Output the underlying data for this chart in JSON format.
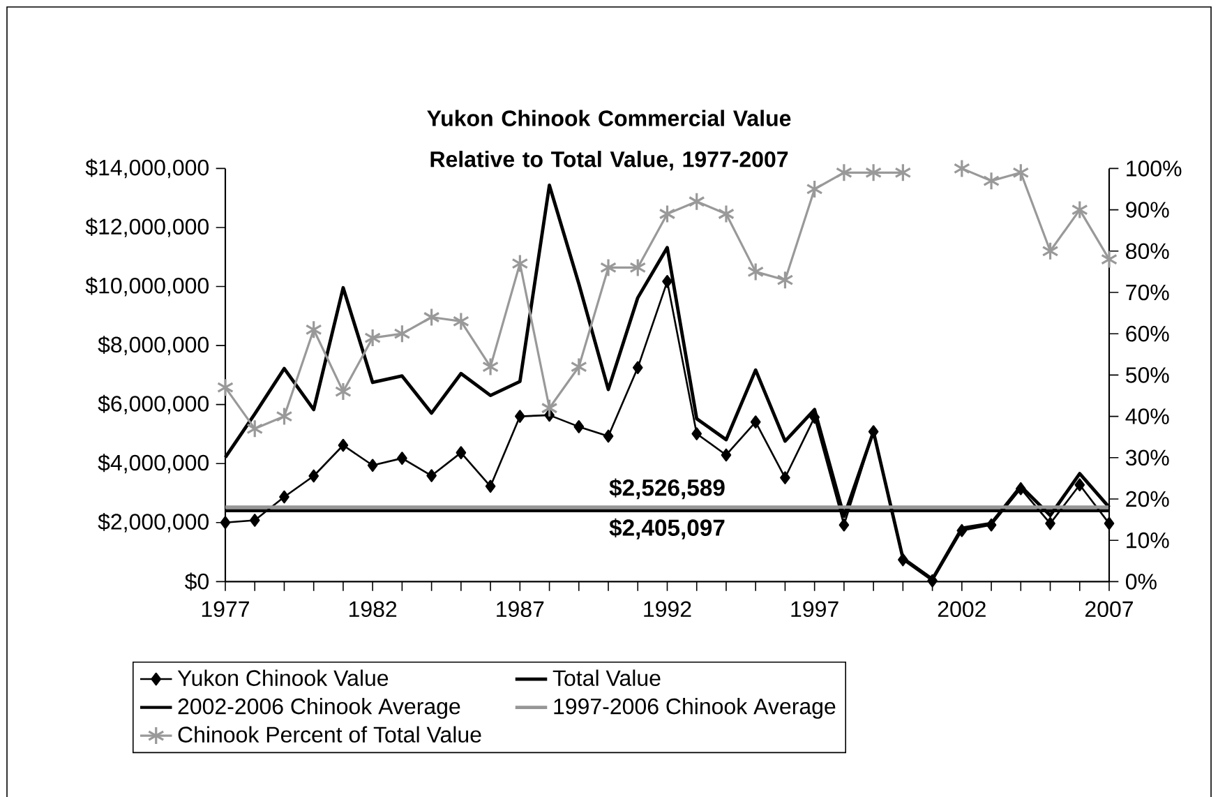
{
  "chart_data": {
    "type": "line",
    "title": "Yukon Chinook Commercial Value Relative to Total Value, 1977-2007",
    "x": [
      1977,
      1978,
      1979,
      1980,
      1981,
      1982,
      1983,
      1984,
      1985,
      1986,
      1987,
      1988,
      1989,
      1990,
      1991,
      1992,
      1993,
      1994,
      1995,
      1996,
      1997,
      1998,
      1999,
      2000,
      2001,
      2002,
      2003,
      2004,
      2005,
      2006,
      2007
    ],
    "xlim": [
      1977,
      2007
    ],
    "xticks": [
      1977,
      {
        "value": 1978,
        "label": null
      },
      {
        "value": 1979,
        "label": null
      },
      {
        "value": 1980,
        "label": null
      },
      {
        "value": 1981,
        "label": null
      },
      1982,
      {
        "value": 1983,
        "label": null
      },
      {
        "value": 1984,
        "label": null
      },
      {
        "value": 1985,
        "label": null
      },
      {
        "value": 1986,
        "label": null
      },
      1987,
      {
        "value": 1988,
        "label": null
      },
      {
        "value": 1989,
        "label": null
      },
      {
        "value": 1990,
        "label": null
      },
      {
        "value": 1991,
        "label": null
      },
      1992,
      {
        "value": 1993,
        "label": null
      },
      {
        "value": 1994,
        "label": null
      },
      {
        "value": 1995,
        "label": null
      },
      {
        "value": 1996,
        "label": null
      },
      1997,
      {
        "value": 1998,
        "label": null
      },
      {
        "value": 1999,
        "label": null
      },
      {
        "value": 2000,
        "label": null
      },
      {
        "value": 2001,
        "label": null
      },
      2002,
      {
        "value": 2003,
        "label": null
      },
      {
        "value": 2004,
        "label": null
      },
      {
        "value": 2005,
        "label": null
      },
      {
        "value": 2006,
        "label": null
      },
      2007
    ],
    "ylim": [
      0,
      14000000
    ],
    "yticks": [
      {
        "value": 0,
        "label": "$0"
      },
      {
        "value": 2000000,
        "label": "$2,000,000"
      },
      {
        "value": 4000000,
        "label": "$4,000,000"
      },
      {
        "value": 6000000,
        "label": "$6,000,000"
      },
      {
        "value": 8000000,
        "label": "$8,000,000"
      },
      {
        "value": 10000000,
        "label": "$10,000,000"
      },
      {
        "value": 12000000,
        "label": "$12,000,000"
      },
      {
        "value": 14000000,
        "label": "$14,000,000"
      }
    ],
    "y2lim": [
      0,
      100
    ],
    "y2ticks": [
      {
        "value": 0,
        "label": "0%"
      },
      {
        "value": 10,
        "label": "10%"
      },
      {
        "value": 20,
        "label": "20%"
      },
      {
        "value": 30,
        "label": "30%"
      },
      {
        "value": 40,
        "label": "40%"
      },
      {
        "value": 50,
        "label": "50%"
      },
      {
        "value": 60,
        "label": "60%"
      },
      {
        "value": 70,
        "label": "70%"
      },
      {
        "value": 80,
        "label": "80%"
      },
      {
        "value": 90,
        "label": "90%"
      },
      {
        "value": 100,
        "label": "100%"
      }
    ],
    "legend": "bottom",
    "series": [
      {
        "name": "Yukon Chinook Value",
        "color": "#000000",
        "marker": "diamond",
        "values": [
          2000000,
          2080000,
          2870000,
          3580000,
          4620000,
          3940000,
          4180000,
          3590000,
          4370000,
          3230000,
          5600000,
          5640000,
          5250000,
          4930000,
          7250000,
          10170000,
          5010000,
          4290000,
          5410000,
          3520000,
          5570000,
          1920000,
          5080000,
          740000,
          30000,
          1730000,
          1920000,
          3150000,
          1970000,
          3280000,
          1970000
        ]
      },
      {
        "name": "Total Value",
        "color": "#000000",
        "marker": "none",
        "values": [
          4210000,
          5680000,
          7220000,
          5830000,
          9960000,
          6750000,
          6970000,
          5710000,
          7050000,
          6310000,
          6780000,
          13430000,
          10090000,
          6510000,
          9620000,
          11320000,
          5520000,
          4810000,
          7170000,
          4760000,
          5830000,
          2210000,
          5080000,
          790000,
          80000,
          1810000,
          1970000,
          3230000,
          2240000,
          3660000,
          2520000
        ]
      },
      {
        "name": "2002-2006 Chinook Average",
        "color": "#000000",
        "marker": "none",
        "values": [
          2405097,
          2405097,
          2405097,
          2405097,
          2405097,
          2405097,
          2405097,
          2405097,
          2405097,
          2405097,
          2405097,
          2405097,
          2405097,
          2405097,
          2405097,
          2405097,
          2405097,
          2405097,
          2405097,
          2405097,
          2405097,
          2405097,
          2405097,
          2405097,
          2405097,
          2405097,
          2405097,
          2405097,
          2405097,
          2405097,
          2405097
        ],
        "value_labels": [
          null,
          null,
          null,
          null,
          null,
          null,
          null,
          null,
          null,
          null,
          null,
          null,
          null,
          null,
          null,
          "$2,405,097",
          null,
          null,
          null,
          null,
          null,
          null,
          null,
          null,
          null,
          null,
          null,
          null,
          null,
          null,
          null
        ]
      },
      {
        "name": "1997-2006 Chinook Average",
        "color": "#969696",
        "marker": "none",
        "values": [
          2526589,
          2526589,
          2526589,
          2526589,
          2526589,
          2526589,
          2526589,
          2526589,
          2526589,
          2526589,
          2526589,
          2526589,
          2526589,
          2526589,
          2526589,
          2526589,
          2526589,
          2526589,
          2526589,
          2526589,
          2526589,
          2526589,
          2526589,
          2526589,
          2526589,
          2526589,
          2526589,
          2526589,
          2526589,
          2526589,
          2526589
        ],
        "value_labels": [
          null,
          null,
          null,
          null,
          null,
          null,
          null,
          null,
          null,
          null,
          null,
          null,
          null,
          null,
          null,
          "$2,526,589",
          null,
          null,
          null,
          null,
          null,
          null,
          null,
          null,
          null,
          null,
          null,
          null,
          null,
          null,
          null
        ]
      },
      {
        "name": "Chinook Percent of Total Value",
        "color": "#999999",
        "marker": "cross",
        "axis": "y2",
        "values": [
          47,
          37,
          40,
          61,
          46,
          59,
          60,
          64,
          63,
          52,
          77,
          42,
          52,
          76,
          76,
          89,
          92,
          89,
          75,
          73,
          95,
          99,
          99,
          99,
          null,
          100,
          97,
          99,
          80,
          90,
          78
        ]
      }
    ]
  }
}
